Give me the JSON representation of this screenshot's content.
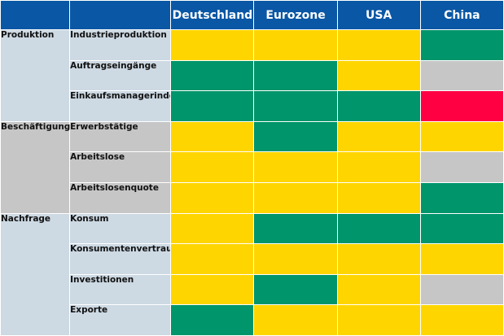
{
  "header": {
    "columns": [
      "Deutschland",
      "Eurozone",
      "USA",
      "China"
    ]
  },
  "colors": {
    "header_bg": "#0a57a5",
    "header_text": "#ffffff",
    "yellow": "#ffd500",
    "green": "#00956a",
    "grey": "#c6c6c6",
    "red": "#ff0043",
    "group_bg_blue": "#cdd9e3",
    "group_bg_grey": "#c6c6c6"
  },
  "groups": [
    {
      "name": "Produktion",
      "rows": [
        {
          "label": "Industrieproduktion",
          "cells": [
            "yellow",
            "yellow",
            "yellow",
            "green"
          ]
        },
        {
          "label": "Auftragseingänge",
          "cells": [
            "green",
            "green",
            "yellow",
            "grey"
          ]
        },
        {
          "label": "Einkaufsmanagerindex",
          "cells": [
            "green",
            "green",
            "green",
            "red"
          ]
        }
      ]
    },
    {
      "name": "Beschäftigung",
      "rows": [
        {
          "label": "Erwerbstätige",
          "cells": [
            "yellow",
            "green",
            "yellow",
            "yellow"
          ]
        },
        {
          "label": "Arbeitslose",
          "cells": [
            "yellow",
            "yellow",
            "yellow",
            "grey"
          ]
        },
        {
          "label": "Arbeitslosenquote",
          "cells": [
            "yellow",
            "yellow",
            "yellow",
            "green"
          ]
        }
      ]
    },
    {
      "name": "Nachfrage",
      "rows": [
        {
          "label": "Konsum",
          "cells": [
            "yellow",
            "green",
            "green",
            "green"
          ]
        },
        {
          "label": "Konsumentenvertrauen",
          "cells": [
            "yellow",
            "yellow",
            "yellow",
            "yellow"
          ]
        },
        {
          "label": "Investitionen",
          "cells": [
            "yellow",
            "green",
            "yellow",
            "grey"
          ]
        },
        {
          "label": "Exporte",
          "cells": [
            "green",
            "yellow",
            "yellow",
            "yellow"
          ]
        }
      ]
    }
  ]
}
